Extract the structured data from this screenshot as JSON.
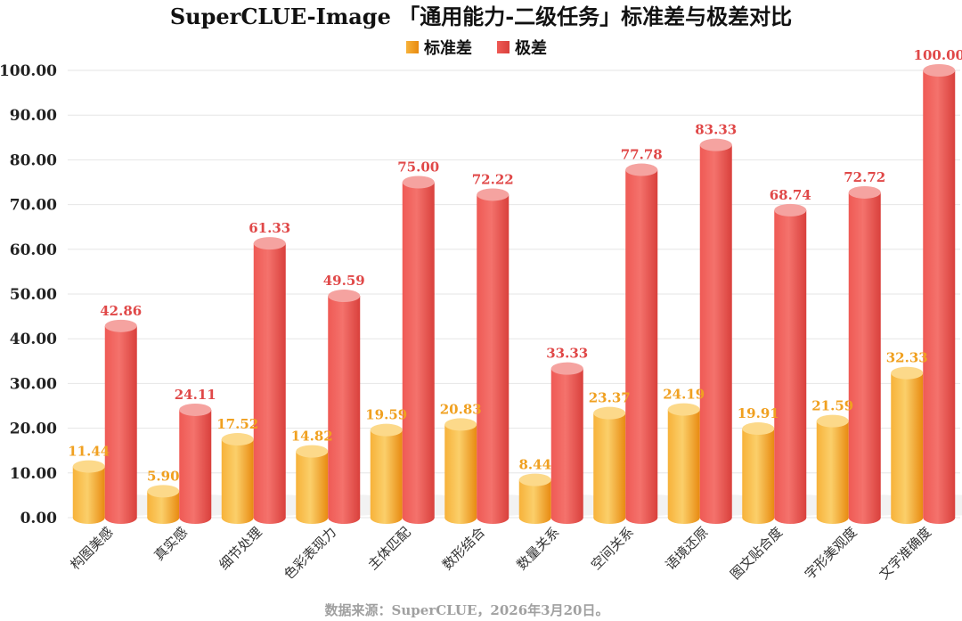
{
  "chart_data": {
    "type": "bar",
    "title": "SuperCLUE-Image 「通用能力-二级任务」标准差与极差对比",
    "categories": [
      "构图美感",
      "真实感",
      "细节处理",
      "色彩表现力",
      "主体匹配",
      "数形结合",
      "数量关系",
      "空间关系",
      "语境还原",
      "图文贴合度",
      "字形美观度",
      "文字准确度"
    ],
    "series": [
      {
        "name": "标准差",
        "values": [
          11.44,
          5.9,
          17.52,
          14.82,
          19.59,
          20.83,
          8.44,
          23.37,
          24.19,
          19.91,
          21.59,
          32.33
        ],
        "labels": [
          "11.44",
          "5.90",
          "17.52",
          "14.82",
          "19.59",
          "20.83",
          "8.44",
          "23.37",
          "24.19",
          "19.91",
          "21.59",
          "32.33"
        ],
        "color": "#f5a623"
      },
      {
        "name": "极差",
        "values": [
          42.86,
          24.11,
          61.33,
          49.59,
          75.0,
          72.22,
          33.33,
          77.78,
          83.33,
          68.74,
          72.72,
          100.0
        ],
        "labels": [
          "42.86",
          "24.11",
          "61.33",
          "49.59",
          "75.00",
          "72.22",
          "33.33",
          "77.78",
          "83.33",
          "68.74",
          "72.72",
          "100.00"
        ],
        "color": "#e8504c"
      }
    ],
    "ylim": [
      0,
      100
    ],
    "yticks": [
      "0.00",
      "10.00",
      "20.00",
      "30.00",
      "40.00",
      "50.00",
      "60.00",
      "70.00",
      "80.00",
      "90.00",
      "100.00"
    ],
    "legend_position": "top-center",
    "grid": true,
    "source": "数据来源：SuperCLUE，2026年3月20日。"
  }
}
